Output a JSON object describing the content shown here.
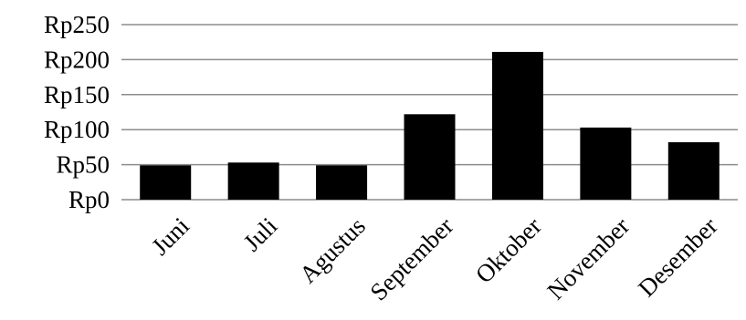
{
  "chart_data": {
    "type": "bar",
    "title": "",
    "xlabel": "",
    "ylabel": "",
    "categories": [
      "Juni",
      "Juli",
      "Agustus",
      "September",
      "Oktober",
      "November",
      "Desember"
    ],
    "values": [
      49,
      53,
      49,
      122,
      211,
      103,
      82
    ],
    "ylim": [
      0,
      250
    ],
    "yticks": [
      0,
      50,
      100,
      150,
      200,
      250
    ],
    "ytick_labels": [
      "Rp0",
      "Rp50",
      "Rp100",
      "Rp150",
      "Rp200",
      "Rp250"
    ],
    "grid": true,
    "legend": "none",
    "bar_color": "#000000"
  }
}
